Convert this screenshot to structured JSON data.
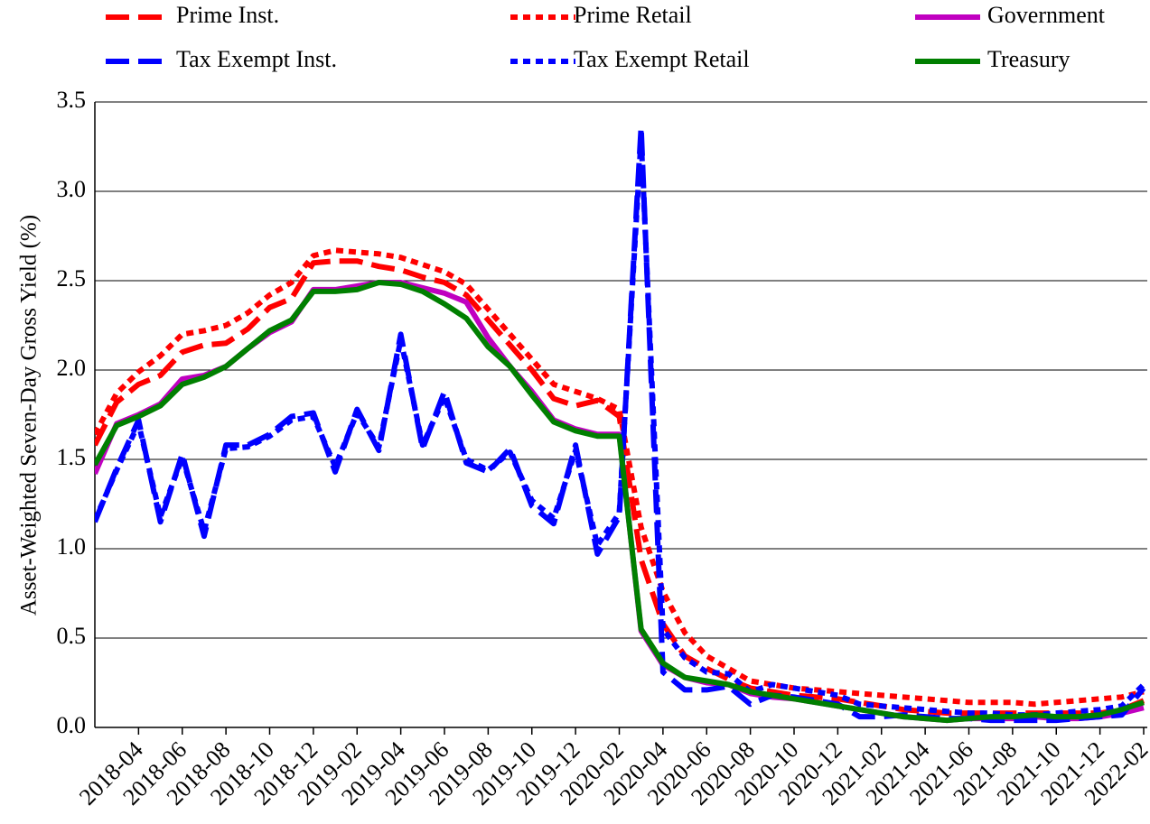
{
  "chart_data": {
    "type": "line",
    "y_label": "Asset-Weighted Seven-Day Gross Yield (%)",
    "x": [
      "2018-02",
      "2018-03",
      "2018-04",
      "2018-05",
      "2018-06",
      "2018-07",
      "2018-08",
      "2018-09",
      "2018-10",
      "2018-11",
      "2018-12",
      "2019-01",
      "2019-02",
      "2019-03",
      "2019-04",
      "2019-05",
      "2019-06",
      "2019-07",
      "2019-08",
      "2019-09",
      "2019-10",
      "2019-11",
      "2019-12",
      "2020-01",
      "2020-02",
      "2020-03",
      "2020-04",
      "2020-05",
      "2020-06",
      "2020-07",
      "2020-08",
      "2020-09",
      "2020-10",
      "2020-11",
      "2020-12",
      "2021-01",
      "2021-02",
      "2021-03",
      "2021-04",
      "2021-05",
      "2021-06",
      "2021-07",
      "2021-08",
      "2021-09",
      "2021-10",
      "2021-11",
      "2021-12",
      "2022-01",
      "2022-02"
    ],
    "xlim": [
      "2018-02",
      "2022-02"
    ],
    "xticks": [
      "2018-04",
      "2018-06",
      "2018-08",
      "2018-10",
      "2018-12",
      "2019-02",
      "2019-04",
      "2019-06",
      "2019-08",
      "2019-10",
      "2019-12",
      "2020-02",
      "2020-04",
      "2020-06",
      "2020-08",
      "2020-10",
      "2020-12",
      "2021-02",
      "2021-04",
      "2021-06",
      "2021-08",
      "2021-10",
      "2021-12",
      "2022-02"
    ],
    "ylim": [
      0,
      3.5
    ],
    "yticks": [
      {
        "value": 0,
        "label": "0.0"
      },
      0.5,
      {
        "value": 1,
        "label": "1.0"
      },
      1.5,
      {
        "value": 2,
        "label": "2.0"
      },
      2.5,
      {
        "value": 3,
        "label": "3.0"
      },
      3.5
    ],
    "grid": true,
    "legend": "top",
    "series": [
      {
        "name": "Prime Inst.",
        "color": "#ff0000",
        "style": "dashed",
        "values": [
          1.58,
          1.82,
          1.92,
          1.97,
          2.1,
          2.14,
          2.15,
          2.23,
          2.35,
          2.4,
          2.6,
          2.61,
          2.61,
          2.58,
          2.56,
          2.52,
          2.49,
          2.42,
          2.28,
          2.14,
          2.0,
          1.84,
          1.8,
          1.83,
          1.74,
          0.94,
          0.58,
          0.4,
          0.33,
          0.27,
          0.22,
          0.2,
          0.18,
          0.17,
          0.16,
          0.14,
          0.12,
          0.1,
          0.09,
          0.08,
          0.08,
          0.08,
          0.08,
          0.08,
          0.08,
          0.08,
          0.08,
          0.1,
          0.15
        ]
      },
      {
        "name": "Prime Retail",
        "color": "#ff0000",
        "style": "dotted",
        "values": [
          1.64,
          1.87,
          1.99,
          2.08,
          2.2,
          2.22,
          2.25,
          2.32,
          2.42,
          2.49,
          2.64,
          2.67,
          2.66,
          2.65,
          2.63,
          2.59,
          2.55,
          2.48,
          2.34,
          2.2,
          2.06,
          1.92,
          1.88,
          1.84,
          1.78,
          1.12,
          0.76,
          0.53,
          0.4,
          0.33,
          0.26,
          0.24,
          0.22,
          0.21,
          0.2,
          0.19,
          0.18,
          0.17,
          0.16,
          0.15,
          0.14,
          0.14,
          0.14,
          0.13,
          0.14,
          0.15,
          0.16,
          0.17,
          0.2
        ]
      },
      {
        "name": "Government",
        "color": "#c000c0",
        "style": "solid",
        "values": [
          1.42,
          1.7,
          1.75,
          1.81,
          1.95,
          1.97,
          2.02,
          2.12,
          2.21,
          2.27,
          2.45,
          2.45,
          2.47,
          2.49,
          2.49,
          2.46,
          2.43,
          2.38,
          2.18,
          2.02,
          1.88,
          1.72,
          1.67,
          1.64,
          1.64,
          0.54,
          0.35,
          0.28,
          0.25,
          0.24,
          0.19,
          0.17,
          0.16,
          0.14,
          0.12,
          0.1,
          0.08,
          0.06,
          0.05,
          0.04,
          0.05,
          0.05,
          0.05,
          0.06,
          0.05,
          0.05,
          0.06,
          0.08,
          0.11
        ]
      },
      {
        "name": "Tax Exempt Inst.",
        "color": "#0000ff",
        "style": "dashed",
        "values": [
          1.15,
          1.45,
          1.72,
          1.15,
          1.53,
          1.07,
          1.58,
          1.58,
          1.64,
          1.74,
          1.76,
          1.43,
          1.78,
          1.55,
          2.2,
          1.56,
          1.88,
          1.48,
          1.43,
          1.56,
          1.24,
          1.14,
          1.58,
          0.97,
          1.18,
          3.36,
          0.31,
          0.21,
          0.21,
          0.23,
          0.13,
          0.18,
          0.17,
          0.15,
          0.13,
          0.06,
          0.06,
          0.07,
          0.06,
          0.05,
          0.05,
          0.04,
          0.04,
          0.04,
          0.04,
          0.05,
          0.06,
          0.07,
          0.22
        ]
      },
      {
        "name": "Tax Exempt Retail",
        "color": "#0000ff",
        "style": "dotted",
        "values": [
          1.16,
          1.44,
          1.7,
          1.18,
          1.51,
          1.1,
          1.56,
          1.57,
          1.63,
          1.72,
          1.74,
          1.46,
          1.76,
          1.57,
          2.17,
          1.58,
          1.85,
          1.5,
          1.44,
          1.54,
          1.27,
          1.17,
          1.55,
          1.02,
          1.2,
          3.3,
          0.55,
          0.39,
          0.31,
          0.3,
          0.2,
          0.24,
          0.22,
          0.2,
          0.18,
          0.13,
          0.12,
          0.11,
          0.1,
          0.09,
          0.08,
          0.08,
          0.07,
          0.07,
          0.08,
          0.09,
          0.1,
          0.12,
          0.24
        ]
      },
      {
        "name": "Treasury",
        "color": "#007f00",
        "style": "solid",
        "values": [
          1.47,
          1.69,
          1.74,
          1.8,
          1.92,
          1.96,
          2.02,
          2.12,
          2.22,
          2.28,
          2.44,
          2.44,
          2.45,
          2.49,
          2.48,
          2.44,
          2.37,
          2.29,
          2.13,
          2.02,
          1.86,
          1.71,
          1.66,
          1.63,
          1.63,
          0.55,
          0.36,
          0.28,
          0.26,
          0.24,
          0.2,
          0.18,
          0.16,
          0.14,
          0.12,
          0.1,
          0.08,
          0.06,
          0.05,
          0.04,
          0.05,
          0.06,
          0.06,
          0.07,
          0.06,
          0.06,
          0.07,
          0.1,
          0.14
        ]
      }
    ]
  }
}
